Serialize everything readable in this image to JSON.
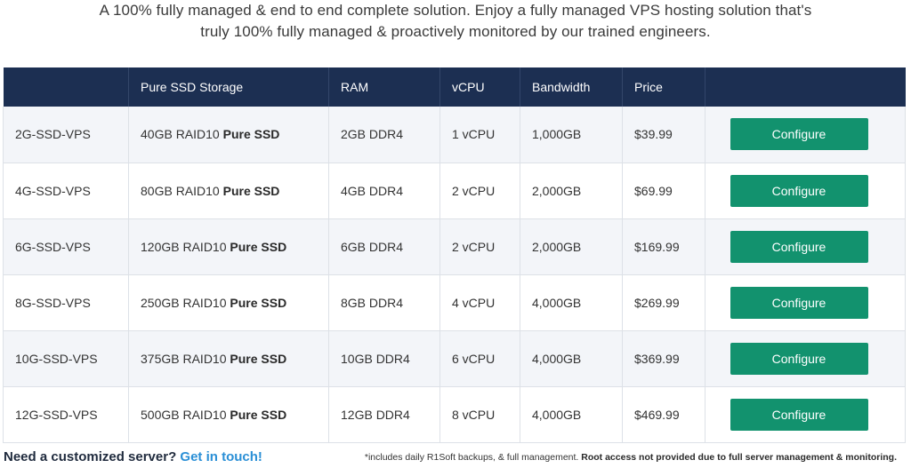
{
  "intro": {
    "line1": "A 100% fully managed & end to end complete solution. Enjoy a fully managed VPS hosting solution that's",
    "line2": "truly 100% fully managed & proactively monitored by our trained engineers."
  },
  "table": {
    "headers": [
      "",
      "Pure SSD Storage",
      "RAM",
      "vCPU",
      "Bandwidth",
      "Price",
      ""
    ],
    "rows": [
      {
        "plan": "2G-SSD-VPS",
        "storage_prefix": "40GB RAID10",
        "storage_bold": "Pure SSD",
        "ram": "2GB DDR4",
        "vcpu": "1 vCPU",
        "bandwidth": "1,000GB",
        "price": "$39.99",
        "button": "Configure"
      },
      {
        "plan": "4G-SSD-VPS",
        "storage_prefix": "80GB RAID10",
        "storage_bold": "Pure SSD",
        "ram": "4GB DDR4",
        "vcpu": "2 vCPU",
        "bandwidth": "2,000GB",
        "price": "$69.99",
        "button": "Configure"
      },
      {
        "plan": "6G-SSD-VPS",
        "storage_prefix": "120GB RAID10",
        "storage_bold": "Pure SSD",
        "ram": "6GB DDR4",
        "vcpu": "2 vCPU",
        "bandwidth": "2,000GB",
        "price": "$169.99",
        "button": "Configure"
      },
      {
        "plan": "8G-SSD-VPS",
        "storage_prefix": "250GB RAID10",
        "storage_bold": "Pure SSD",
        "ram": "8GB DDR4",
        "vcpu": "4 vCPU",
        "bandwidth": "4,000GB",
        "price": "$269.99",
        "button": "Configure"
      },
      {
        "plan": "10G-SSD-VPS",
        "storage_prefix": "375GB RAID10",
        "storage_bold": "Pure SSD",
        "ram": "10GB DDR4",
        "vcpu": "6 vCPU",
        "bandwidth": "4,000GB",
        "price": "$369.99",
        "button": "Configure"
      },
      {
        "plan": "12G-SSD-VPS",
        "storage_prefix": "500GB RAID10",
        "storage_bold": "Pure SSD",
        "ram": "12GB DDR4",
        "vcpu": "8 vCPU",
        "bandwidth": "4,000GB",
        "price": "$469.99",
        "button": "Configure"
      }
    ]
  },
  "footer": {
    "question": "Need a customized server?",
    "link": "Get in touch!",
    "note": "*includes daily R1Soft backups, & full management.",
    "note_bold": "Root access not provided due to full server management & monitoring."
  },
  "colors": {
    "header_bg": "#1c2f52",
    "button_bg": "#12926e",
    "link": "#2a8fd6"
  }
}
